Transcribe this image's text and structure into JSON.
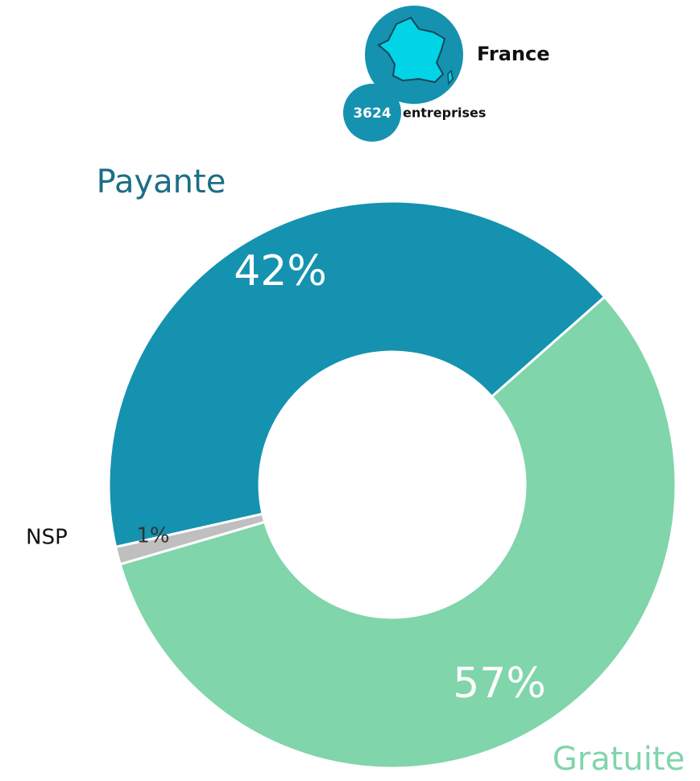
{
  "chart_data": {
    "type": "donut",
    "header": {
      "country": "France",
      "count": "3624",
      "unit": "entreprises"
    },
    "categories": [
      "Payante",
      "Gratuite",
      "NSP"
    ],
    "values": [
      42,
      57,
      1
    ],
    "value_labels": [
      "42%",
      "57%",
      "1%"
    ],
    "colors": [
      "#1592b0",
      "#80d5aa",
      "#bfbfbf"
    ],
    "label_colors": [
      "#1b6f86",
      "#80d5aa",
      "#111111"
    ]
  }
}
